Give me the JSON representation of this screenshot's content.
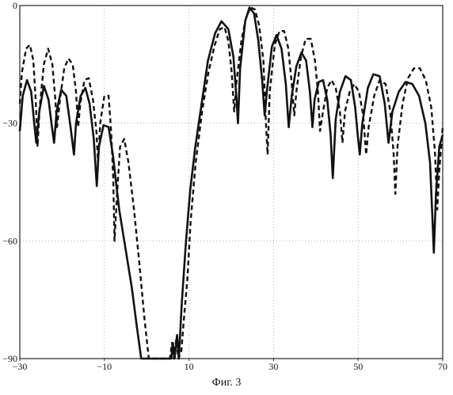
{
  "caption": "Фиг. 3",
  "chart_data": {
    "type": "line",
    "title": "",
    "xlabel": "",
    "ylabel": "",
    "xlim": [
      -30,
      70
    ],
    "ylim": [
      -90,
      0
    ],
    "x_ticks": [
      -30,
      -10,
      10,
      30,
      50,
      70
    ],
    "x_tick_labels": [
      "−30",
      "−10",
      "10",
      "30",
      "50",
      "70"
    ],
    "y_ticks": [
      0,
      -30,
      -60,
      -90
    ],
    "y_tick_labels": [
      "0",
      "−30",
      "−60",
      "−90"
    ],
    "grid": "dotted",
    "line_color": "#111111",
    "series": [
      {
        "style": "solid",
        "points": [
          [
            -30,
            -32
          ],
          [
            -29.3,
            -23
          ],
          [
            -28.3,
            -19
          ],
          [
            -27.3,
            -22
          ],
          [
            -26.6,
            -30
          ],
          [
            -26.1,
            -35
          ],
          [
            -25.4,
            -27
          ],
          [
            -24.3,
            -20.5
          ],
          [
            -23.2,
            -24
          ],
          [
            -22.4,
            -31
          ],
          [
            -21.9,
            -35
          ],
          [
            -21.3,
            -27
          ],
          [
            -20.2,
            -21.5
          ],
          [
            -19,
            -23
          ],
          [
            -18,
            -31
          ],
          [
            -17.2,
            -38
          ],
          [
            -16.7,
            -30
          ],
          [
            -15.6,
            -23
          ],
          [
            -14.5,
            -21
          ],
          [
            -13.5,
            -25
          ],
          [
            -12.5,
            -34
          ],
          [
            -11.8,
            -46
          ],
          [
            -11.3,
            -36
          ],
          [
            -10.2,
            -30.5
          ],
          [
            -9,
            -31
          ],
          [
            -8,
            -38
          ],
          [
            -6.5,
            -52
          ],
          [
            -5,
            -62
          ],
          [
            -3.5,
            -72
          ],
          [
            -2.3,
            -82
          ],
          [
            -1.3,
            -90
          ],
          [
            5.8,
            -90
          ],
          [
            6.2,
            -86
          ],
          [
            6.6,
            -90
          ],
          [
            7.2,
            -84
          ],
          [
            7.6,
            -90
          ],
          [
            8.3,
            -76
          ],
          [
            9.3,
            -60
          ],
          [
            10.3,
            -47
          ],
          [
            11.5,
            -36
          ],
          [
            13,
            -25
          ],
          [
            14.5,
            -14
          ],
          [
            16.2,
            -7
          ],
          [
            17.7,
            -4
          ],
          [
            19.3,
            -6
          ],
          [
            20.5,
            -13
          ],
          [
            21.2,
            -23
          ],
          [
            21.6,
            -30
          ],
          [
            22.1,
            -16
          ],
          [
            23.3,
            -4
          ],
          [
            24.3,
            -0.5
          ],
          [
            25.4,
            -2
          ],
          [
            26.4,
            -9
          ],
          [
            27.3,
            -19
          ],
          [
            27.9,
            -28
          ],
          [
            28.4,
            -22
          ],
          [
            29.6,
            -10.5
          ],
          [
            30.7,
            -7.5
          ],
          [
            31.9,
            -11
          ],
          [
            32.9,
            -20
          ],
          [
            33.6,
            -31
          ],
          [
            34.3,
            -23
          ],
          [
            35.4,
            -15.5
          ],
          [
            36.6,
            -12
          ],
          [
            37.7,
            -14
          ],
          [
            38.6,
            -22
          ],
          [
            39.2,
            -31
          ],
          [
            39.7,
            -24
          ],
          [
            40.7,
            -19.5
          ],
          [
            41.7,
            -19
          ],
          [
            42.7,
            -24
          ],
          [
            43.5,
            -33
          ],
          [
            44,
            -44
          ],
          [
            44.7,
            -29
          ],
          [
            45.7,
            -22
          ],
          [
            47,
            -18
          ],
          [
            48.3,
            -19
          ],
          [
            49.3,
            -26
          ],
          [
            49.9,
            -33
          ],
          [
            50.4,
            -38
          ],
          [
            51,
            -30
          ],
          [
            52.3,
            -21
          ],
          [
            53.6,
            -17.5
          ],
          [
            55.1,
            -18
          ],
          [
            56.3,
            -25
          ],
          [
            57.2,
            -35
          ],
          [
            58.1,
            -27
          ],
          [
            59.6,
            -22
          ],
          [
            61.2,
            -19.5
          ],
          [
            62.8,
            -20
          ],
          [
            64.4,
            -23
          ],
          [
            65.9,
            -30
          ],
          [
            67,
            -40
          ],
          [
            67.6,
            -55
          ],
          [
            67.9,
            -63
          ],
          [
            68.4,
            -48
          ],
          [
            69.2,
            -36
          ],
          [
            70,
            -33
          ]
        ]
      },
      {
        "style": "dashed",
        "points": [
          [
            -30,
            -25
          ],
          [
            -29.5,
            -17
          ],
          [
            -28.5,
            -11
          ],
          [
            -27.6,
            -10
          ],
          [
            -26.8,
            -14
          ],
          [
            -26.2,
            -25
          ],
          [
            -25.8,
            -36
          ],
          [
            -25.3,
            -26
          ],
          [
            -24.3,
            -15
          ],
          [
            -23.3,
            -11
          ],
          [
            -22.3,
            -15
          ],
          [
            -21.6,
            -24
          ],
          [
            -21.2,
            -31
          ],
          [
            -20.5,
            -24
          ],
          [
            -19.5,
            -16
          ],
          [
            -18.5,
            -13.5
          ],
          [
            -17.5,
            -15
          ],
          [
            -16.7,
            -22
          ],
          [
            -16.2,
            -31
          ],
          [
            -15.7,
            -25
          ],
          [
            -14.7,
            -19
          ],
          [
            -13.7,
            -18.5
          ],
          [
            -12.7,
            -24
          ],
          [
            -11.9,
            -32
          ],
          [
            -11.5,
            -40
          ],
          [
            -11,
            -30
          ],
          [
            -10,
            -23
          ],
          [
            -9,
            -23
          ],
          [
            -8.4,
            -32
          ],
          [
            -7.9,
            -44
          ],
          [
            -7.6,
            -60
          ],
          [
            -7,
            -48
          ],
          [
            -6.3,
            -36
          ],
          [
            -5.3,
            -34
          ],
          [
            -4.3,
            -40
          ],
          [
            -3,
            -52
          ],
          [
            -1.7,
            -66
          ],
          [
            -0.5,
            -80
          ],
          [
            0.5,
            -90
          ],
          [
            5.5,
            -90
          ],
          [
            6,
            -86
          ],
          [
            6.4,
            -90
          ],
          [
            7,
            -85
          ],
          [
            7.5,
            -90
          ],
          [
            8.2,
            -88
          ],
          [
            8.8,
            -80
          ],
          [
            9.6,
            -70
          ],
          [
            10.4,
            -55
          ],
          [
            11.6,
            -40
          ],
          [
            13.1,
            -27
          ],
          [
            14.6,
            -17
          ],
          [
            16.1,
            -10
          ],
          [
            17.3,
            -6
          ],
          [
            18.4,
            -5.5
          ],
          [
            19.3,
            -9
          ],
          [
            20.1,
            -17
          ],
          [
            20.7,
            -27
          ],
          [
            21.3,
            -19
          ],
          [
            22.4,
            -9
          ],
          [
            23.5,
            -3
          ],
          [
            24.6,
            -0.5
          ],
          [
            25.6,
            -1
          ],
          [
            26.6,
            -5
          ],
          [
            27.6,
            -14
          ],
          [
            28.2,
            -30
          ],
          [
            28.6,
            -38
          ],
          [
            29.1,
            -22
          ],
          [
            30.3,
            -10
          ],
          [
            31.4,
            -6.5
          ],
          [
            32.5,
            -6.5
          ],
          [
            33.5,
            -11
          ],
          [
            34.3,
            -20
          ],
          [
            34.9,
            -28
          ],
          [
            35.4,
            -22
          ],
          [
            36.5,
            -13
          ],
          [
            37.6,
            -8.5
          ],
          [
            38.8,
            -8.5
          ],
          [
            39.8,
            -14
          ],
          [
            40.5,
            -22
          ],
          [
            41,
            -32
          ],
          [
            41.7,
            -27
          ],
          [
            42.7,
            -21
          ],
          [
            43.7,
            -19
          ],
          [
            44.7,
            -21
          ],
          [
            45.7,
            -27
          ],
          [
            46.3,
            -35
          ],
          [
            46.9,
            -27
          ],
          [
            48,
            -22
          ],
          [
            49.1,
            -20
          ],
          [
            50.2,
            -22
          ],
          [
            51.2,
            -28
          ],
          [
            51.9,
            -38
          ],
          [
            52.5,
            -31
          ],
          [
            53.8,
            -23
          ],
          [
            55.1,
            -19
          ],
          [
            56.5,
            -20
          ],
          [
            57.6,
            -27
          ],
          [
            58.4,
            -38
          ],
          [
            58.8,
            -48
          ],
          [
            59.3,
            -36
          ],
          [
            60.5,
            -25
          ],
          [
            61.8,
            -18.5
          ],
          [
            63.2,
            -16
          ],
          [
            64.6,
            -16
          ],
          [
            66,
            -19
          ],
          [
            67.3,
            -26
          ],
          [
            68.2,
            -38
          ],
          [
            68.7,
            -52
          ],
          [
            69.2,
            -42
          ],
          [
            70,
            -31
          ]
        ]
      }
    ]
  }
}
